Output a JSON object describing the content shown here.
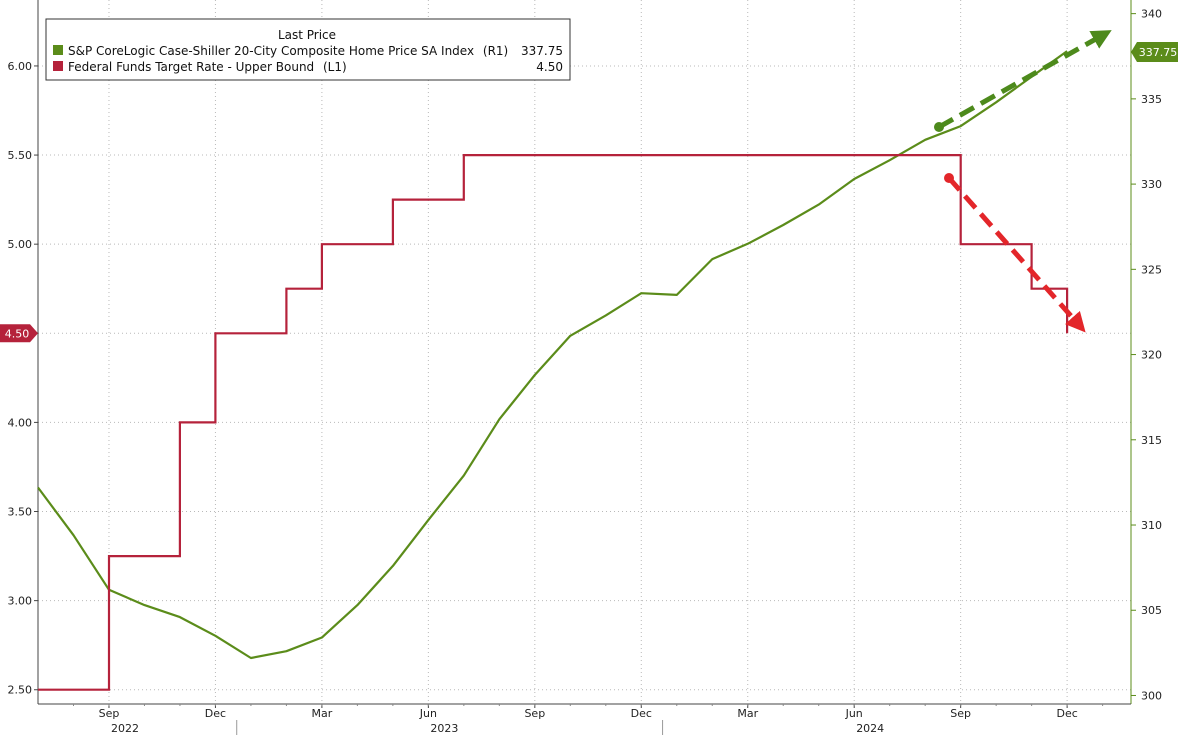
{
  "chart_data": {
    "type": "line",
    "legend": {
      "header": "Last Price",
      "placement": "top-left",
      "entries": [
        {
          "name": "S&P CoreLogic Case-Shiller 20-City Composite Home Price SA Index",
          "axis_tag": "(R1)",
          "last": "337.75",
          "color": "#5b8c1a"
        },
        {
          "name": "Federal Funds Target Rate - Upper Bound",
          "axis_tag": "(L1)",
          "last": "4.50",
          "color": "#b5223b"
        }
      ]
    },
    "left_axis": {
      "ylim": [
        2.42,
        6.37
      ],
      "ticks": [
        2.5,
        3.0,
        3.5,
        4.0,
        4.5,
        5.0,
        5.5,
        6.0
      ],
      "tick_labels": [
        "2.50",
        "3.00",
        "3.50",
        "4.00",
        "4.50",
        "5.00",
        "5.50",
        "6.00"
      ]
    },
    "right_axis": {
      "ylim": [
        299.5,
        340.8
      ],
      "ticks": [
        300,
        305,
        310,
        315,
        320,
        325,
        330,
        335,
        340
      ],
      "tick_labels": [
        "300",
        "305",
        "310",
        "315",
        "320",
        "325",
        "330",
        "335",
        "340"
      ]
    },
    "x_axis": {
      "range_months": [
        -1.0,
        29.8
      ],
      "month_ticks": [
        {
          "m": 1,
          "label": "Sep"
        },
        {
          "m": 4,
          "label": "Dec"
        },
        {
          "m": 7,
          "label": "Mar"
        },
        {
          "m": 10,
          "label": "Jun"
        },
        {
          "m": 13,
          "label": "Sep"
        },
        {
          "m": 16,
          "label": "Dec"
        },
        {
          "m": 19,
          "label": "Mar"
        },
        {
          "m": 22,
          "label": "Jun"
        },
        {
          "m": 25,
          "label": "Sep"
        },
        {
          "m": 28,
          "label": "Dec"
        }
      ],
      "year_labels": [
        {
          "m": 1,
          "label": "2022"
        },
        {
          "m": 10,
          "label": "2023"
        },
        {
          "m": 22,
          "label": "2024"
        }
      ]
    },
    "grid": true,
    "series": [
      {
        "name": "S&P CoreLogic Case-Shiller 20-City Composite Home Price SA Index",
        "axis": "right",
        "color": "#5b8c1a",
        "points": [
          [
            -1,
            312.2
          ],
          [
            0,
            309.4
          ],
          [
            1,
            306.2
          ],
          [
            2,
            305.3
          ],
          [
            3,
            304.6
          ],
          [
            4,
            303.5
          ],
          [
            5,
            302.2
          ],
          [
            6,
            302.6
          ],
          [
            7,
            303.4
          ],
          [
            8,
            305.3
          ],
          [
            9,
            307.6
          ],
          [
            10,
            310.3
          ],
          [
            11,
            312.9
          ],
          [
            12,
            316.2
          ],
          [
            13,
            318.8
          ],
          [
            14,
            321.1
          ],
          [
            15,
            322.3
          ],
          [
            16,
            323.6
          ],
          [
            17,
            323.5
          ],
          [
            18,
            325.6
          ],
          [
            19,
            326.5
          ],
          [
            20,
            327.6
          ],
          [
            21,
            328.8
          ],
          [
            22,
            330.3
          ],
          [
            23,
            331.4
          ],
          [
            24,
            332.6
          ],
          [
            25,
            333.4
          ],
          [
            26,
            334.8
          ],
          [
            27,
            336.3
          ],
          [
            28,
            337.8
          ]
        ]
      },
      {
        "name": "Federal Funds Target Rate - Upper Bound",
        "axis": "left",
        "color": "#b5223b",
        "step_points": [
          [
            -1,
            2.5
          ],
          [
            1,
            3.25
          ],
          [
            3,
            4.0
          ],
          [
            4,
            4.5
          ],
          [
            6,
            4.75
          ],
          [
            7,
            5.0
          ],
          [
            9,
            5.25
          ],
          [
            11,
            5.5
          ],
          [
            25,
            5.0
          ],
          [
            27,
            4.75
          ],
          [
            28,
            4.5
          ]
        ]
      }
    ],
    "last_value_tags": {
      "left": "4.50",
      "right": "337.75"
    },
    "annotations": [
      {
        "type": "dashed-arrow",
        "direction": "up",
        "color": "#4d8a1c"
      },
      {
        "type": "dashed-arrow",
        "direction": "down",
        "color": "#e3262a"
      }
    ]
  }
}
